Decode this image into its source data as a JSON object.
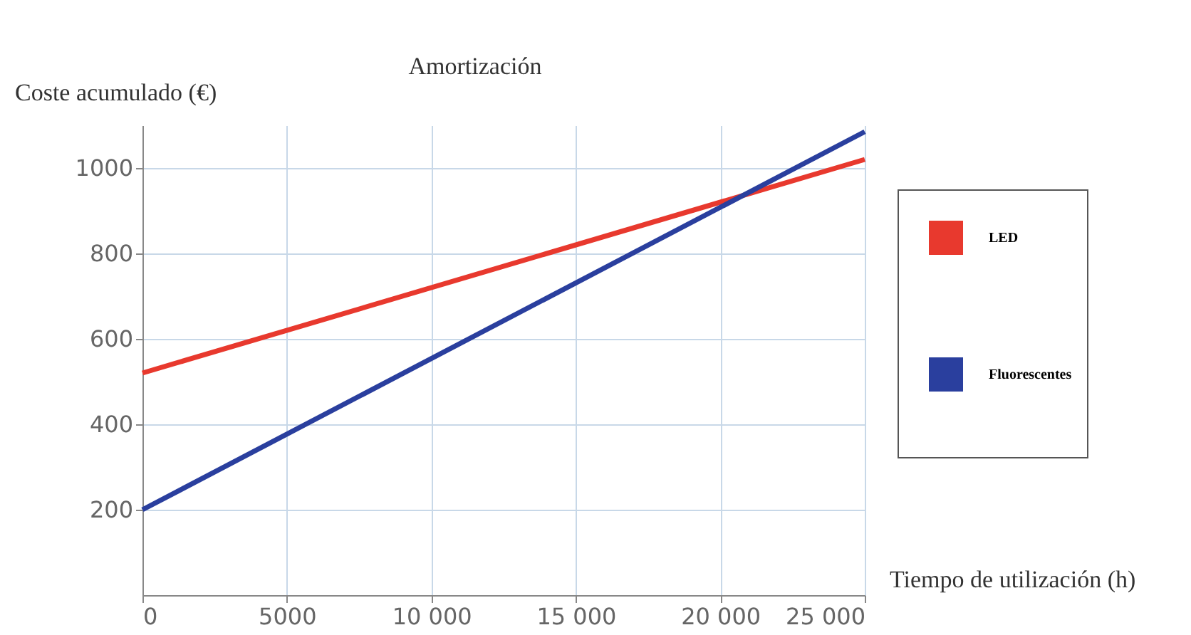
{
  "chart_data": {
    "type": "line",
    "title": "Amortización",
    "xlabel": "Tiempo de utilización (h)",
    "ylabel": "Coste acumulado (€)",
    "x": [
      0,
      25000
    ],
    "series": [
      {
        "name": "LED",
        "color": "#e8392e",
        "values": [
          520,
          1020
        ]
      },
      {
        "name": "Fluorescentes",
        "color": "#2a3f9e",
        "values": [
          200,
          1085
        ]
      }
    ],
    "xlim": [
      0,
      25000
    ],
    "ylim": [
      0,
      1100
    ],
    "xticks": [
      0,
      5000,
      {
        "value": 10000,
        "label": "10 000"
      },
      {
        "value": 15000,
        "label": "15 000"
      },
      {
        "value": 20000,
        "label": "20 000"
      },
      {
        "value": 25000,
        "label": "25 000"
      }
    ],
    "yticks": [
      200,
      400,
      600,
      800,
      1000
    ],
    "grid": true,
    "legend": "right",
    "marker": "none",
    "line_style": "solid"
  }
}
